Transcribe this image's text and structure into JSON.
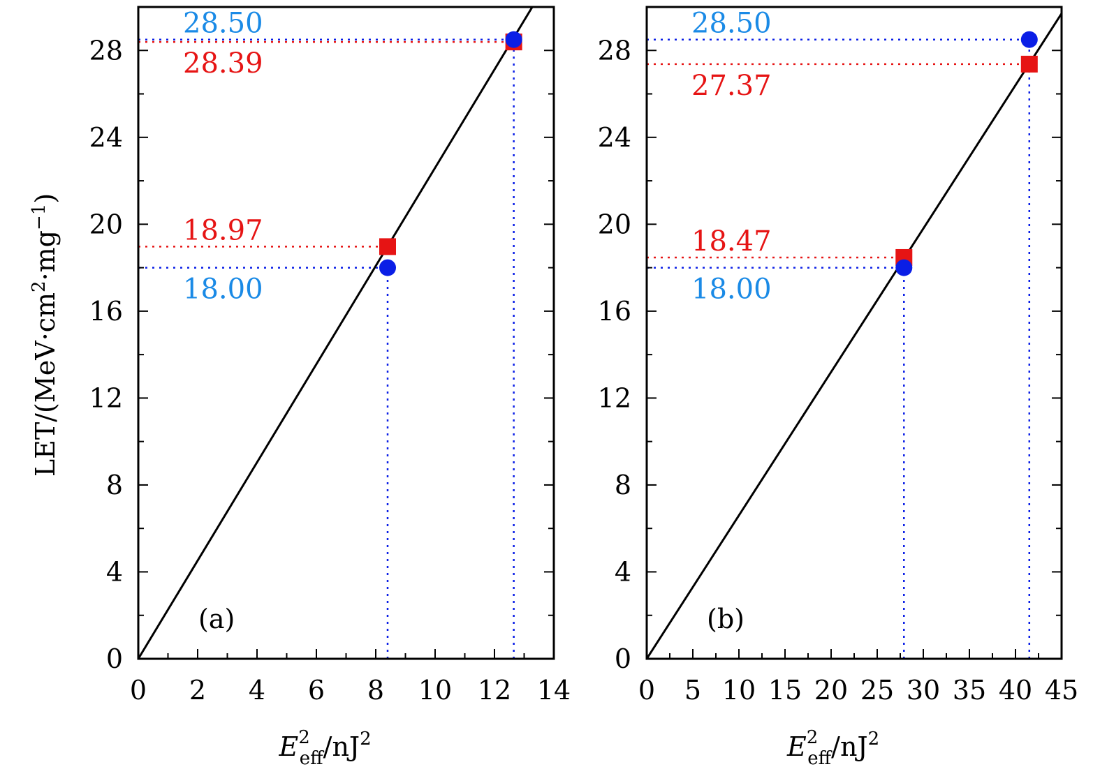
{
  "figure": {
    "ylabel_main": "LET/(MeV·cm",
    "ylabel_sup1": "2",
    "ylabel_mid": "·mg",
    "ylabel_sup2": "−1",
    "ylabel_close": ")"
  },
  "colors": {
    "blue_marker": "#0a1ee6",
    "blue_text": "#1a8ae6",
    "red": "#e61414",
    "line": "#000000"
  },
  "chart_data": [
    {
      "type": "scatter",
      "panel_label": "(a)",
      "xlabel": {
        "base": "E",
        "sub": "eff",
        "sup": "2",
        "unit": "/nJ",
        "unit_sup": "2"
      },
      "xlim": [
        0,
        14
      ],
      "ylim": [
        0,
        30
      ],
      "xticks": [
        0,
        2,
        4,
        6,
        8,
        10,
        12,
        14
      ],
      "yticks": [
        0,
        4,
        8,
        12,
        16,
        20,
        24,
        28
      ],
      "fit_line": {
        "slope": 2.26,
        "intercept": 0
      },
      "series": [
        {
          "marker": "circle",
          "color": "blue",
          "points": [
            [
              8.4,
              18.0
            ],
            [
              12.65,
              28.5
            ]
          ]
        },
        {
          "marker": "square",
          "color": "red",
          "points": [
            [
              8.4,
              18.97
            ],
            [
              12.65,
              28.39
            ]
          ]
        }
      ],
      "annotations": [
        {
          "text": "28.50",
          "y": 28.5,
          "color": "blue",
          "pos": "above"
        },
        {
          "text": "28.39",
          "y": 28.39,
          "color": "red",
          "pos": "below"
        },
        {
          "text": "18.97",
          "y": 18.97,
          "color": "red",
          "pos": "above"
        },
        {
          "text": "18.00",
          "y": 18.0,
          "color": "blue",
          "pos": "below"
        }
      ],
      "guide_lines": [
        {
          "orientation": "h",
          "y": 28.5,
          "x_to": 12.65,
          "color": "blue"
        },
        {
          "orientation": "h",
          "y": 28.39,
          "x_to": 12.65,
          "color": "red"
        },
        {
          "orientation": "h",
          "y": 18.97,
          "x_to": 8.4,
          "color": "red"
        },
        {
          "orientation": "h",
          "y": 18.0,
          "x_to": 8.4,
          "color": "blue"
        },
        {
          "orientation": "v",
          "x": 8.4,
          "y_to": 18.0,
          "color": "blue"
        },
        {
          "orientation": "v",
          "x": 12.65,
          "y_to": 28.5,
          "color": "blue"
        }
      ]
    },
    {
      "type": "scatter",
      "panel_label": "(b)",
      "xlabel": {
        "base": "E",
        "sub": "eff",
        "sup": "2",
        "unit": "/nJ",
        "unit_sup": "2"
      },
      "xlim": [
        0,
        45
      ],
      "ylim": [
        0,
        30
      ],
      "xticks": [
        0,
        5,
        10,
        15,
        20,
        25,
        30,
        35,
        40,
        45
      ],
      "yticks": [
        0,
        4,
        8,
        12,
        16,
        20,
        24,
        28
      ],
      "fit_line": {
        "slope": 0.66,
        "intercept": 0
      },
      "series": [
        {
          "marker": "circle",
          "color": "blue",
          "points": [
            [
              27.9,
              18.0
            ],
            [
              41.5,
              28.5
            ]
          ]
        },
        {
          "marker": "square",
          "color": "red",
          "points": [
            [
              27.9,
              18.47
            ],
            [
              41.5,
              27.37
            ]
          ]
        }
      ],
      "annotations": [
        {
          "text": "28.50",
          "y": 28.5,
          "color": "blue",
          "pos": "above"
        },
        {
          "text": "27.37",
          "y": 27.37,
          "color": "red",
          "pos": "below"
        },
        {
          "text": "18.47",
          "y": 18.47,
          "color": "red",
          "pos": "above"
        },
        {
          "text": "18.00",
          "y": 18.0,
          "color": "blue",
          "pos": "below"
        }
      ],
      "guide_lines": [
        {
          "orientation": "h",
          "y": 28.5,
          "x_to": 41.5,
          "color": "blue"
        },
        {
          "orientation": "h",
          "y": 27.37,
          "x_to": 41.5,
          "color": "red"
        },
        {
          "orientation": "h",
          "y": 18.47,
          "x_to": 27.9,
          "color": "red"
        },
        {
          "orientation": "h",
          "y": 18.0,
          "x_to": 27.9,
          "color": "blue"
        },
        {
          "orientation": "v",
          "x": 27.9,
          "y_to": 18.0,
          "color": "blue"
        },
        {
          "orientation": "v",
          "x": 41.5,
          "y_to": 28.5,
          "color": "blue"
        }
      ]
    }
  ]
}
